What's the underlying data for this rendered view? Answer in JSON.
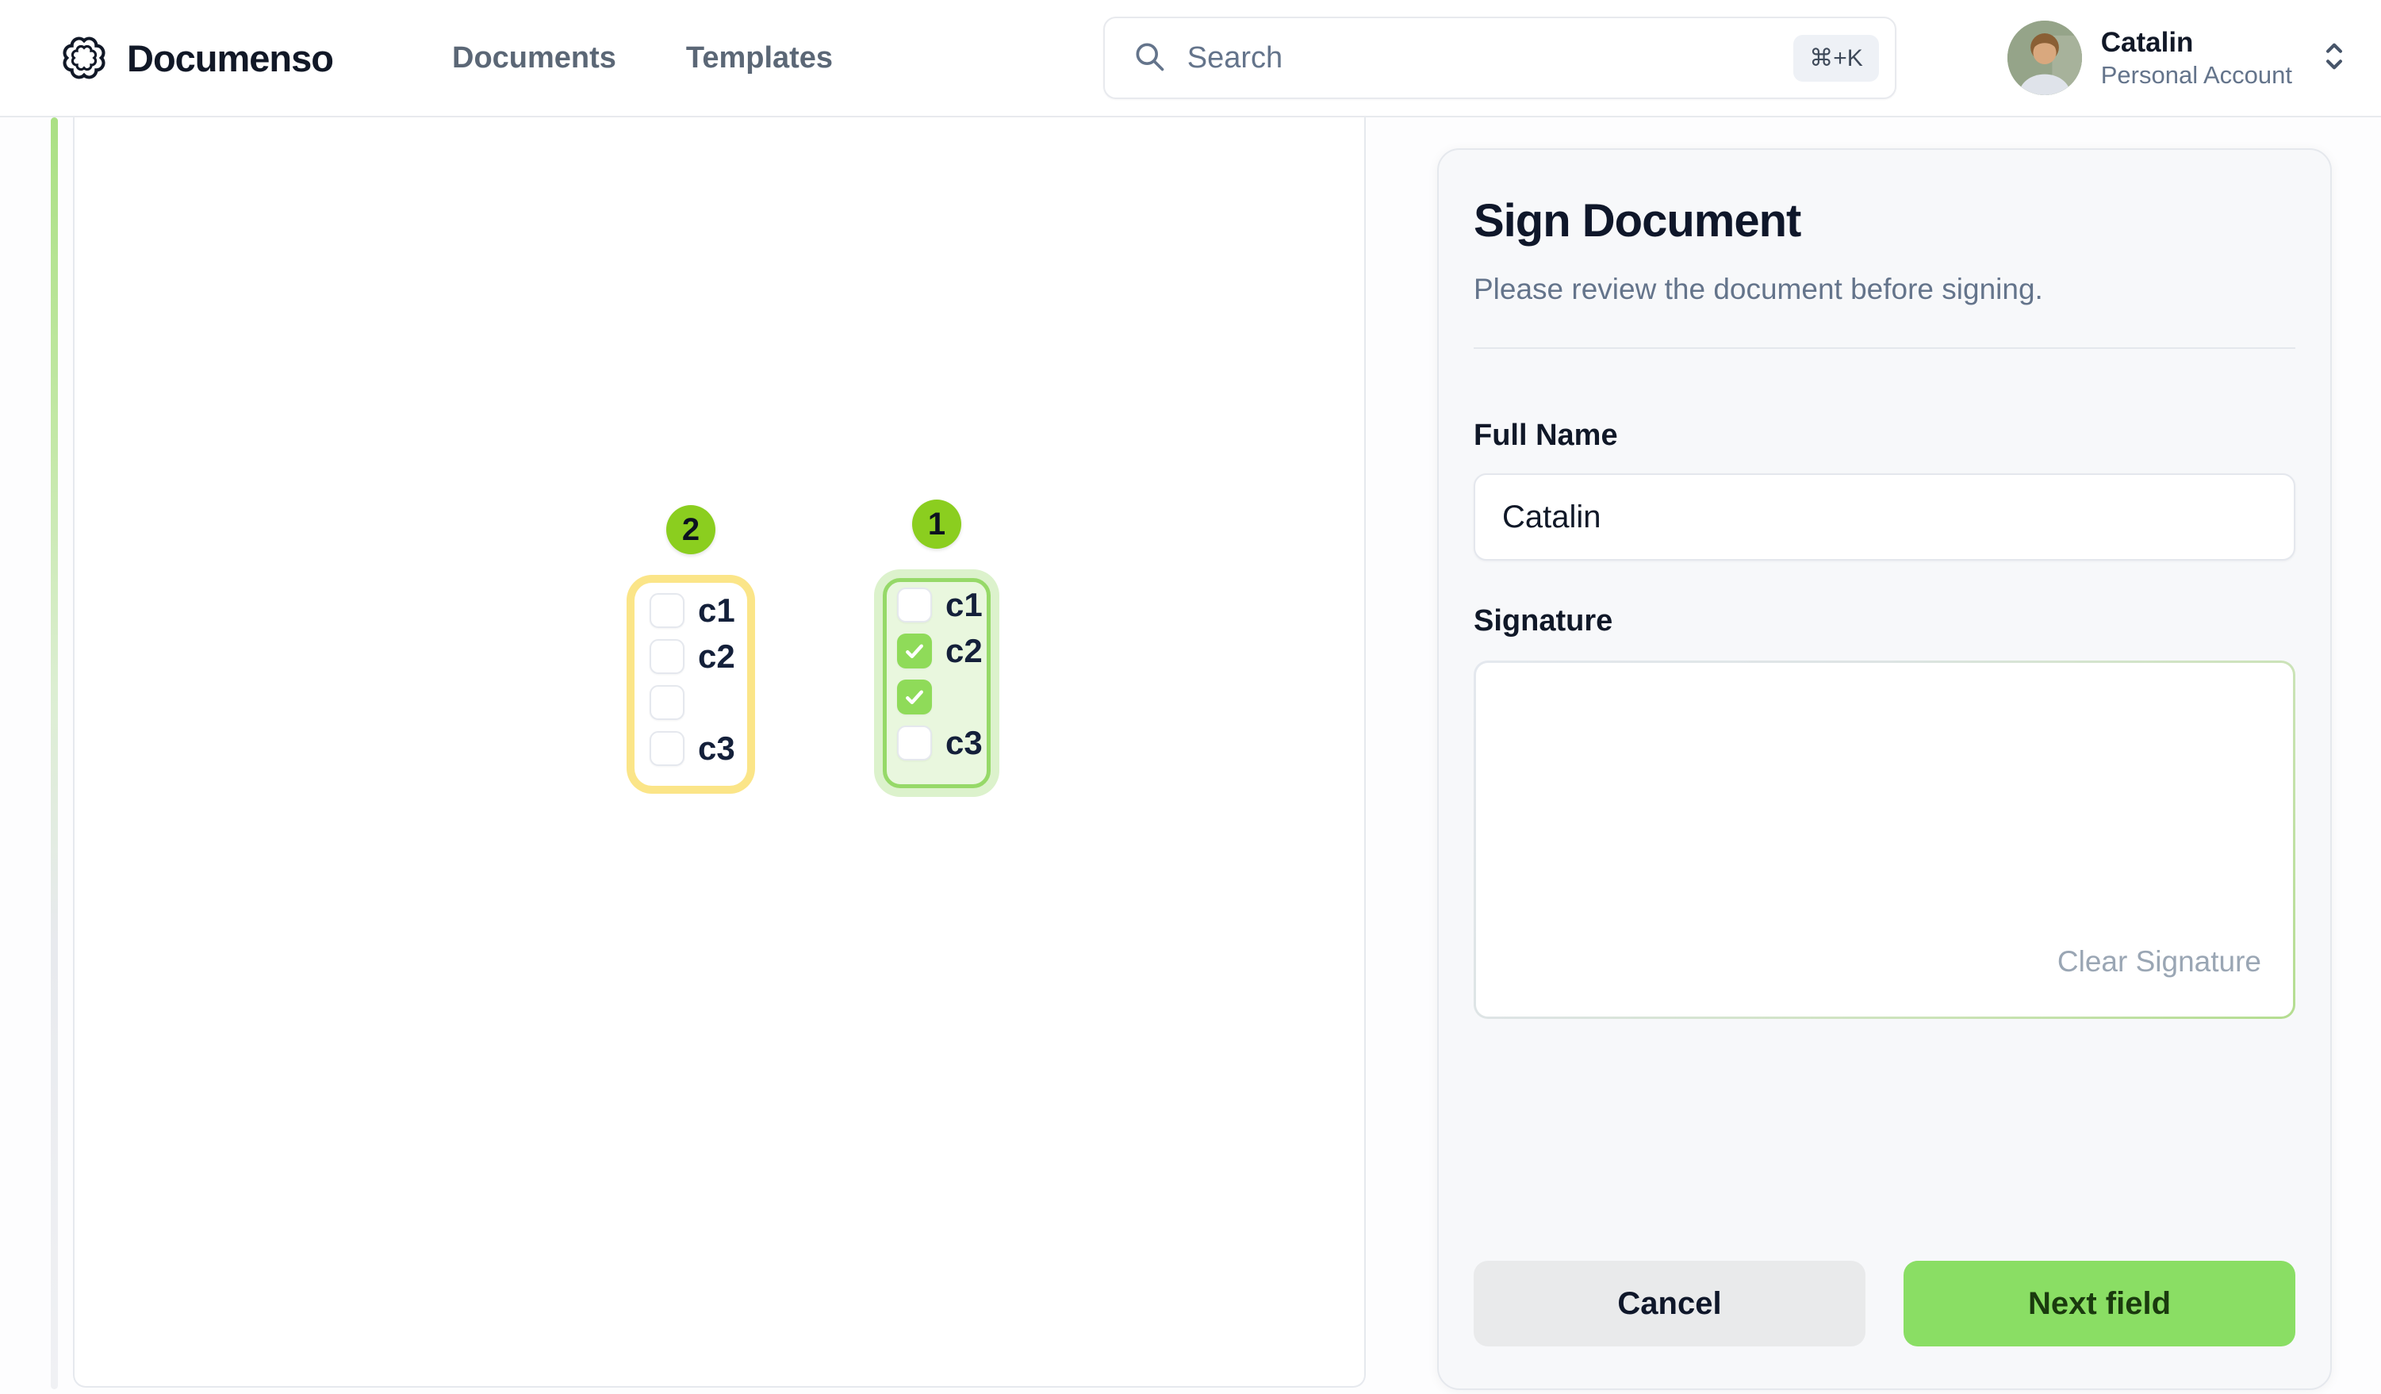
{
  "app": {
    "brand": "Documenso"
  },
  "header": {
    "nav_items": [
      "Documents",
      "Templates"
    ],
    "search": {
      "placeholder": "Search",
      "shortcut": "⌘+K"
    },
    "user": {
      "name": "Catalin",
      "account": "Personal Account"
    }
  },
  "document_fields": [
    {
      "badge": "2",
      "state": "pending",
      "options": [
        {
          "label": "c1",
          "checked": false
        },
        {
          "label": "c2",
          "checked": false
        },
        {
          "label": "",
          "checked": false
        },
        {
          "label": "c3",
          "checked": false
        }
      ]
    },
    {
      "badge": "1",
      "state": "active",
      "options": [
        {
          "label": "c1",
          "checked": false
        },
        {
          "label": "c2",
          "checked": true
        },
        {
          "label": "",
          "checked": true
        },
        {
          "label": "c3",
          "checked": false
        }
      ]
    }
  ],
  "sign_panel": {
    "title": "Sign Document",
    "subtitle": "Please review the document before signing.",
    "full_name": {
      "label": "Full Name",
      "value": "Catalin"
    },
    "signature": {
      "label": "Signature",
      "clear_label": "Clear Signature"
    },
    "actions": {
      "cancel": "Cancel",
      "next": "Next field"
    }
  },
  "colors": {
    "accent-green": "#8ade64",
    "accent-green-dark": "#1a3a0e",
    "badge-green": "#8bce1f",
    "check-green": "#8fdb59",
    "group-green-border": "#96d968",
    "group-green-bg": "#e9f7de",
    "group-green-ring": "#dcf2cc",
    "group-yellow-ring": "#fbe588"
  }
}
